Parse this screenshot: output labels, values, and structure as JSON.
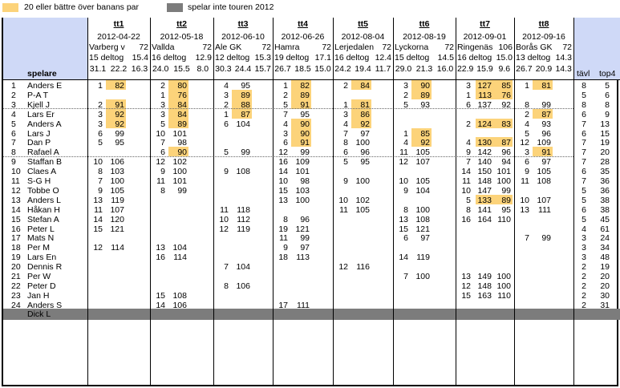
{
  "legend": {
    "highlight_label": "20 eller bättre över banans par",
    "gray_label": "spelar inte touren 2012",
    "highlight_color": "#fcd37a",
    "gray_color": "#7c7c7c"
  },
  "header": {
    "spelare": "spelare",
    "tavl": "tävl",
    "top4": "top4"
  },
  "tournaments": [
    {
      "name": "tt1",
      "date": "2012-04-22",
      "course": "Varberg v",
      "par": "72",
      "deltog": "15 deltog",
      "slope1": "15.4",
      "r1": "31.1",
      "r2": "22.2",
      "r3": "16.3"
    },
    {
      "name": "tt2",
      "date": "2012-05-18",
      "course": "Vallda",
      "par": "72",
      "deltog": "16 deltog",
      "slope1": "12.9",
      "r1": "24.0",
      "r2": "15.5",
      "r3": "8.0"
    },
    {
      "name": "tt3",
      "date": "2012-06-10",
      "course": "Ale GK",
      "par": "72",
      "deltog": "12 deltog",
      "slope1": "15.3",
      "r1": "30.3",
      "r2": "24.4",
      "r3": "15.7"
    },
    {
      "name": "tt4",
      "date": "2012-06-26",
      "course": "Hamra",
      "par": "72",
      "deltog": "19 deltog",
      "slope1": "17.1",
      "r1": "26.7",
      "r2": "18.5",
      "r3": "15.0"
    },
    {
      "name": "tt5",
      "date": "2012-08-04",
      "course": "Lerjedalen",
      "par": "72",
      "deltog": "16 deltog",
      "slope1": "12.4",
      "r1": "24.2",
      "r2": "19.4",
      "r3": "11.7"
    },
    {
      "name": "tt6",
      "date": "2012-08-19",
      "course": "Lyckorna",
      "par": "72",
      "deltog": "15 deltog",
      "slope1": "14.5",
      "r1": "29.0",
      "r2": "21.3",
      "r3": "16.0"
    },
    {
      "name": "tt7",
      "date": "2012-09-01",
      "course": "Ringenäs",
      "par": "106",
      "deltog": "16 deltog",
      "slope1": "15.0",
      "r1": "22.9",
      "r2": "15.9",
      "r3": "9.6"
    },
    {
      "name": "tt8",
      "date": "2012-09-16",
      "course": "Borås GK",
      "par": "72",
      "deltog": "13 deltog",
      "slope1": "14.3",
      "r1": "26.7",
      "r2": "20.9",
      "r3": "14.3"
    }
  ],
  "players": [
    {
      "num": "1",
      "name": "Anders E",
      "r": [
        [
          "1",
          "82"
        ],
        [
          "2",
          "80"
        ],
        [
          "4",
          "95"
        ],
        [
          "1",
          "82"
        ],
        [
          "2",
          "84"
        ],
        [
          "3",
          "90"
        ],
        [
          "3",
          "127",
          "85"
        ],
        [
          "1",
          "81"
        ]
      ],
      "hl": [
        1,
        1,
        0,
        1,
        1,
        1,
        1,
        1
      ],
      "tavl": "8",
      "top4": "5"
    },
    {
      "num": "2",
      "name": "P-A T",
      "r": [
        [],
        [
          "1",
          "76"
        ],
        [
          "3",
          "89"
        ],
        [
          "2",
          "89"
        ],
        [],
        [
          "2",
          "89"
        ],
        [
          "1",
          "113",
          "76"
        ],
        []
      ],
      "hl": [
        0,
        1,
        1,
        1,
        0,
        1,
        1,
        0
      ],
      "tavl": "5",
      "top4": "6"
    },
    {
      "num": "3",
      "name": "Kjell J",
      "r": [
        [
          "2",
          "91"
        ],
        [
          "3",
          "84"
        ],
        [
          "2",
          "88"
        ],
        [
          "5",
          "91"
        ],
        [
          "1",
          "81"
        ],
        [
          "5",
          "93"
        ],
        [
          "6",
          "137",
          "92"
        ],
        [
          "8",
          "99"
        ]
      ],
      "hl": [
        1,
        1,
        1,
        1,
        1,
        0,
        0,
        0
      ],
      "tavl": "8",
      "top4": "8"
    },
    {
      "num": "4",
      "name": "Lars Er",
      "r": [
        [
          "3",
          "92"
        ],
        [
          "3",
          "84"
        ],
        [
          "1",
          "87"
        ],
        [
          "7",
          "95"
        ],
        [
          "3",
          "86"
        ],
        [],
        [],
        [
          "2",
          "87"
        ]
      ],
      "hl": [
        1,
        1,
        1,
        0,
        1,
        0,
        0,
        1
      ],
      "tavl": "6",
      "top4": "9"
    },
    {
      "num": "5",
      "name": "Anders A",
      "r": [
        [
          "3",
          "92"
        ],
        [
          "5",
          "89"
        ],
        [
          "6",
          "104"
        ],
        [
          "4",
          "90"
        ],
        [
          "4",
          "92"
        ],
        [],
        [
          "2",
          "124",
          "83"
        ],
        [
          "4",
          "93"
        ]
      ],
      "hl": [
        1,
        1,
        0,
        1,
        1,
        0,
        1,
        0
      ],
      "tavl": "7",
      "top4": "13"
    },
    {
      "num": "6",
      "name": "Lars J",
      "r": [
        [
          "6",
          "99"
        ],
        [
          "10",
          "101"
        ],
        [],
        [
          "3",
          "90"
        ],
        [
          "7",
          "97"
        ],
        [
          "1",
          "85"
        ],
        [],
        [
          "5",
          "96"
        ]
      ],
      "hl": [
        0,
        0,
        0,
        1,
        0,
        1,
        0,
        0
      ],
      "tavl": "6",
      "top4": "15"
    },
    {
      "num": "7",
      "name": "Dan P",
      "r": [
        [
          "5",
          "95"
        ],
        [
          "7",
          "98"
        ],
        [],
        [
          "6",
          "91"
        ],
        [
          "8",
          "100"
        ],
        [
          "4",
          "92"
        ],
        [
          "4",
          "130",
          "87"
        ],
        [
          "12",
          "109"
        ]
      ],
      "hl": [
        0,
        0,
        0,
        1,
        0,
        1,
        1,
        0
      ],
      "tavl": "7",
      "top4": "19"
    },
    {
      "num": "8",
      "name": "Rafael A",
      "r": [
        [],
        [
          "6",
          "90"
        ],
        [
          "5",
          "99"
        ],
        [
          "12",
          "99"
        ],
        [
          "6",
          "96"
        ],
        [
          "11",
          "105"
        ],
        [
          "9",
          "142",
          "96"
        ],
        [
          "3",
          "91"
        ]
      ],
      "hl": [
        0,
        1,
        0,
        0,
        0,
        0,
        0,
        1
      ],
      "tavl": "7",
      "top4": "20"
    },
    {
      "num": "9",
      "name": "Staffan B",
      "r": [
        [
          "10",
          "106"
        ],
        [
          "12",
          "102"
        ],
        [],
        [
          "16",
          "109"
        ],
        [
          "5",
          "95"
        ],
        [
          "12",
          "107"
        ],
        [
          "7",
          "140",
          "94"
        ],
        [
          "6",
          "97"
        ]
      ],
      "hl": [
        0,
        0,
        0,
        0,
        0,
        0,
        0,
        0
      ],
      "tavl": "7",
      "top4": "28"
    },
    {
      "num": "10",
      "name": "Claes A",
      "r": [
        [
          "8",
          "103"
        ],
        [
          "9",
          "100"
        ],
        [
          "9",
          "108"
        ],
        [
          "14",
          "101"
        ],
        [],
        [],
        [
          "14",
          "150",
          "101"
        ],
        [
          "9",
          "105"
        ]
      ],
      "hl": [
        0,
        0,
        0,
        0,
        0,
        0,
        0,
        0
      ],
      "tavl": "6",
      "top4": "35"
    },
    {
      "num": "11",
      "name": "S-G H",
      "r": [
        [
          "7",
          "100"
        ],
        [
          "11",
          "101"
        ],
        [],
        [
          "10",
          "98"
        ],
        [
          "9",
          "100"
        ],
        [
          "10",
          "105"
        ],
        [
          "11",
          "148",
          "100"
        ],
        [
          "11",
          "108"
        ]
      ],
      "hl": [
        0,
        0,
        0,
        0,
        0,
        0,
        0,
        0
      ],
      "tavl": "7",
      "top4": "36"
    },
    {
      "num": "12",
      "name": "Tobbe O",
      "r": [
        [
          "9",
          "105"
        ],
        [
          "8",
          "99"
        ],
        [],
        [
          "15",
          "103"
        ],
        [],
        [
          "9",
          "104"
        ],
        [
          "10",
          "147",
          "99"
        ],
        []
      ],
      "hl": [
        0,
        0,
        0,
        0,
        0,
        0,
        0,
        0
      ],
      "tavl": "5",
      "top4": "36"
    },
    {
      "num": "13",
      "name": "Anders L",
      "r": [
        [
          "13",
          "119"
        ],
        [],
        [],
        [
          "13",
          "100"
        ],
        [
          "10",
          "102"
        ],
        [],
        [
          "5",
          "133",
          "89"
        ],
        [
          "10",
          "107"
        ]
      ],
      "hl": [
        0,
        0,
        0,
        0,
        0,
        0,
        1,
        0
      ],
      "tavl": "5",
      "top4": "38"
    },
    {
      "num": "14",
      "name": "Håkan H",
      "r": [
        [
          "11",
          "107"
        ],
        [],
        [
          "11",
          "118"
        ],
        [],
        [
          "11",
          "105"
        ],
        [
          "8",
          "100"
        ],
        [
          "8",
          "141",
          "95"
        ],
        [
          "13",
          "111"
        ]
      ],
      "hl": [
        0,
        0,
        0,
        0,
        0,
        0,
        0,
        0
      ],
      "tavl": "6",
      "top4": "38"
    },
    {
      "num": "15",
      "name": "Stefan A",
      "r": [
        [
          "14",
          "120"
        ],
        [],
        [
          "10",
          "112"
        ],
        [
          "8",
          "96"
        ],
        [],
        [
          "13",
          "108"
        ],
        [
          "16",
          "164",
          "110"
        ],
        []
      ],
      "hl": [
        0,
        0,
        0,
        0,
        0,
        0,
        0,
        0
      ],
      "tavl": "5",
      "top4": "45"
    },
    {
      "num": "16",
      "name": "Peter L",
      "r": [
        [
          "15",
          "121"
        ],
        [],
        [
          "12",
          "119"
        ],
        [
          "19",
          "121"
        ],
        [],
        [
          "15",
          "121"
        ],
        [],
        []
      ],
      "hl": [
        0,
        0,
        0,
        0,
        0,
        0,
        0,
        0
      ],
      "tavl": "4",
      "top4": "61"
    },
    {
      "num": "17",
      "name": "Mats N",
      "r": [
        [],
        [],
        [],
        [
          "11",
          "99"
        ],
        [],
        [
          "6",
          "97"
        ],
        [],
        [
          "7",
          "99"
        ]
      ],
      "hl": [
        0,
        0,
        0,
        0,
        0,
        0,
        0,
        0
      ],
      "tavl": "3",
      "top4": "24"
    },
    {
      "num": "18",
      "name": "Per M",
      "r": [
        [
          "12",
          "114"
        ],
        [
          "13",
          "104"
        ],
        [],
        [
          "9",
          "97"
        ],
        [],
        [],
        [],
        []
      ],
      "hl": [
        0,
        0,
        0,
        0,
        0,
        0,
        0,
        0
      ],
      "tavl": "3",
      "top4": "34"
    },
    {
      "num": "19",
      "name": "Lars En",
      "r": [
        [],
        [
          "16",
          "114"
        ],
        [],
        [
          "18",
          "113"
        ],
        [],
        [
          "14",
          "119"
        ],
        [],
        []
      ],
      "hl": [
        0,
        0,
        0,
        0,
        0,
        0,
        0,
        0
      ],
      "tavl": "3",
      "top4": "48"
    },
    {
      "num": "20",
      "name": "Dennis R",
      "r": [
        [],
        [],
        [
          "7",
          "104"
        ],
        [],
        [
          "12",
          "116"
        ],
        [],
        [],
        []
      ],
      "hl": [
        0,
        0,
        0,
        0,
        0,
        0,
        0,
        0
      ],
      "tavl": "2",
      "top4": "19"
    },
    {
      "num": "21",
      "name": "Per W",
      "r": [
        [],
        [],
        [],
        [],
        [],
        [
          "7",
          "100"
        ],
        [
          "13",
          "149",
          "100"
        ],
        []
      ],
      "hl": [
        0,
        0,
        0,
        0,
        0,
        0,
        0,
        0
      ],
      "tavl": "2",
      "top4": "20"
    },
    {
      "num": "22",
      "name": "Peter D",
      "r": [
        [],
        [],
        [
          "8",
          "106"
        ],
        [],
        [],
        [],
        [
          "12",
          "148",
          "100"
        ],
        []
      ],
      "hl": [
        0,
        0,
        0,
        0,
        0,
        0,
        0,
        0
      ],
      "tavl": "2",
      "top4": "20"
    },
    {
      "num": "23",
      "name": "Jan H",
      "r": [
        [],
        [
          "15",
          "108"
        ],
        [],
        [],
        [],
        [],
        [
          "15",
          "163",
          "110"
        ],
        []
      ],
      "hl": [
        0,
        0,
        0,
        0,
        0,
        0,
        0,
        0
      ],
      "tavl": "2",
      "top4": "30"
    },
    {
      "num": "24",
      "name": "Anders S",
      "r": [
        [],
        [
          "14",
          "106"
        ],
        [],
        [
          "17",
          "111"
        ],
        [],
        [],
        [],
        []
      ],
      "hl": [
        0,
        0,
        0,
        0,
        0,
        0,
        0,
        0
      ],
      "tavl": "2",
      "top4": "31"
    }
  ],
  "inactive": [
    {
      "name": "Dick L"
    }
  ]
}
